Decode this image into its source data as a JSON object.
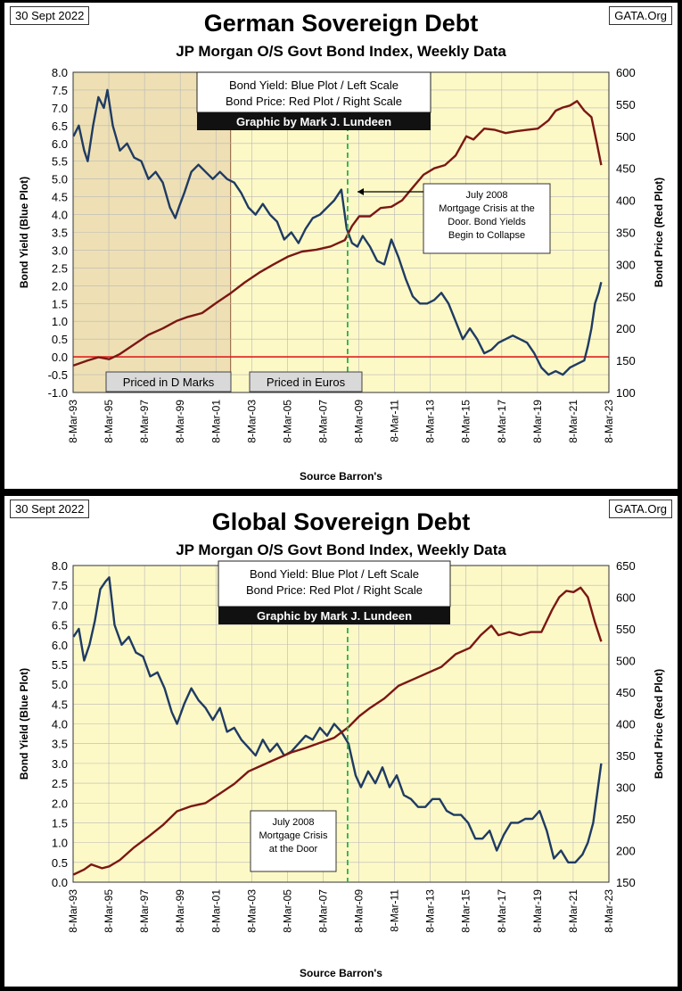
{
  "chart_data": [
    {
      "type": "line",
      "title": "German Sovereign Debt",
      "subtitle": "JP Morgan O/S Govt Bond Index, Weekly Data",
      "date_label": "30 Sept 2022",
      "source_tag": "GATA.Org",
      "xlabel": "Source Barron's",
      "ylabel_left": "Bond Yield (Blue Plot)",
      "ylabel_right": "Bond Price (Red Plot)",
      "ylim_left": [
        -1.0,
        8.0
      ],
      "ylim_right": [
        100,
        600
      ],
      "yticks_left": [
        "8.0",
        "7.5",
        "7.0",
        "6.5",
        "6.0",
        "5.5",
        "5.0",
        "4.5",
        "4.0",
        "3.5",
        "3.0",
        "2.5",
        "2.0",
        "1.5",
        "1.0",
        "0.5",
        "0.0",
        "-0.5",
        "-1.0"
      ],
      "yticks_right": [
        "600",
        "550",
        "500",
        "450",
        "400",
        "350",
        "300",
        "250",
        "200",
        "150",
        "100"
      ],
      "xticks": [
        "8-Mar-93",
        "8-Mar-95",
        "8-Mar-97",
        "8-Mar-99",
        "8-Mar-01",
        "8-Mar-03",
        "8-Mar-05",
        "8-Mar-07",
        "8-Mar-09",
        "8-Mar-11",
        "8-Mar-13",
        "8-Mar-15",
        "8-Mar-17",
        "8-Mar-19",
        "8-Mar-21",
        "8-Mar-23"
      ],
      "legend": [
        "Bond Yield: Blue Plot / Left Scale",
        "Bond Price: Red Plot / Right Scale"
      ],
      "credit": "Graphic by Mark J. Lundeen",
      "annotation": "July 2008 Mortgage Crisis at the Door. Bond Yields Begin to Collapse",
      "annotation_x": 2008.55,
      "zero_line": 0.0,
      "shaded_until": 2002.0,
      "region_labels": [
        "Priced in D Marks",
        "Priced in Euros"
      ],
      "series": [
        {
          "name": "Bond Yield",
          "axis": "left",
          "color": "#1f3b63",
          "x": [
            1993.2,
            1993.5,
            1993.8,
            1994.0,
            1994.3,
            1994.6,
            1994.9,
            1995.1,
            1995.4,
            1995.8,
            1996.2,
            1996.6,
            1997.0,
            1997.4,
            1997.8,
            1998.2,
            1998.6,
            1998.9,
            1999.1,
            1999.4,
            1999.8,
            2000.2,
            2000.6,
            2001.0,
            2001.4,
            2001.8,
            2002.2,
            2002.6,
            2003.0,
            2003.4,
            2003.8,
            2004.2,
            2004.6,
            2005.0,
            2005.4,
            2005.8,
            2006.2,
            2006.6,
            2007.0,
            2007.4,
            2007.8,
            2008.2,
            2008.5,
            2008.8,
            2009.1,
            2009.4,
            2009.8,
            2010.2,
            2010.6,
            2011.0,
            2011.4,
            2011.8,
            2012.2,
            2012.6,
            2013.0,
            2013.4,
            2013.8,
            2014.2,
            2014.6,
            2015.0,
            2015.4,
            2015.8,
            2016.2,
            2016.6,
            2017.0,
            2017.4,
            2017.8,
            2018.2,
            2018.6,
            2019.0,
            2019.4,
            2019.8,
            2020.2,
            2020.6,
            2021.0,
            2021.4,
            2021.8,
            2022.0,
            2022.2,
            2022.4,
            2022.6,
            2022.75
          ],
          "y": [
            6.2,
            6.5,
            5.8,
            5.5,
            6.5,
            7.3,
            7.0,
            7.5,
            6.5,
            5.8,
            6.0,
            5.6,
            5.5,
            5.0,
            5.2,
            4.9,
            4.2,
            3.9,
            4.2,
            4.6,
            5.2,
            5.4,
            5.2,
            5.0,
            5.2,
            5.0,
            4.9,
            4.6,
            4.2,
            4.0,
            4.3,
            4.0,
            3.8,
            3.3,
            3.5,
            3.2,
            3.6,
            3.9,
            4.0,
            4.2,
            4.4,
            4.7,
            3.6,
            3.2,
            3.1,
            3.4,
            3.1,
            2.7,
            2.6,
            3.3,
            2.8,
            2.2,
            1.7,
            1.5,
            1.5,
            1.6,
            1.8,
            1.5,
            1.0,
            0.5,
            0.8,
            0.5,
            0.1,
            0.2,
            0.4,
            0.5,
            0.6,
            0.5,
            0.4,
            0.1,
            -0.3,
            -0.5,
            -0.4,
            -0.5,
            -0.3,
            -0.2,
            -0.1,
            0.3,
            0.8,
            1.5,
            1.8,
            2.1
          ]
        },
        {
          "name": "Bond Price",
          "axis": "right",
          "color": "#7b1714",
          "x": [
            1993.2,
            1994.0,
            1994.6,
            1995.2,
            1995.8,
            1996.6,
            1997.4,
            1998.2,
            1999.0,
            1999.6,
            2000.4,
            2001.2,
            2002.0,
            2002.8,
            2003.6,
            2004.4,
            2005.2,
            2006.0,
            2006.8,
            2007.6,
            2008.4,
            2008.8,
            2009.2,
            2009.8,
            2010.4,
            2011.0,
            2011.6,
            2012.2,
            2012.8,
            2013.4,
            2014.0,
            2014.6,
            2015.2,
            2015.6,
            2016.2,
            2016.8,
            2017.4,
            2018.0,
            2018.6,
            2019.2,
            2019.8,
            2020.2,
            2020.6,
            2021.0,
            2021.4,
            2021.8,
            2022.2,
            2022.5,
            2022.75
          ],
          "y": [
            142,
            150,
            155,
            152,
            160,
            175,
            190,
            200,
            212,
            218,
            224,
            240,
            255,
            272,
            287,
            300,
            312,
            320,
            323,
            328,
            338,
            360,
            375,
            375,
            388,
            390,
            400,
            420,
            440,
            450,
            455,
            470,
            500,
            495,
            512,
            510,
            505,
            508,
            510,
            512,
            525,
            540,
            545,
            548,
            555,
            540,
            530,
            490,
            455
          ]
        }
      ]
    },
    {
      "type": "line",
      "title": "Global Sovereign Debt",
      "subtitle": "JP Morgan O/S Govt Bond Index, Weekly Data",
      "date_label": "30 Sept 2022",
      "source_tag": "GATA.Org",
      "xlabel": "Source Barron's",
      "ylabel_left": "Bond Yield (Blue Plot)",
      "ylabel_right": "Bond Price (Red Plot)",
      "ylim_left": [
        0.0,
        8.0
      ],
      "ylim_right": [
        150,
        650
      ],
      "yticks_left": [
        "8.0",
        "7.5",
        "7.0",
        "6.5",
        "6.0",
        "5.5",
        "5.0",
        "4.5",
        "4.0",
        "3.5",
        "3.0",
        "2.5",
        "2.0",
        "1.5",
        "1.0",
        "0.5",
        "0.0"
      ],
      "yticks_right": [
        "650",
        "600",
        "550",
        "500",
        "450",
        "400",
        "350",
        "300",
        "250",
        "200",
        "150"
      ],
      "xticks": [
        "8-Mar-93",
        "8-Mar-95",
        "8-Mar-97",
        "8-Mar-99",
        "8-Mar-01",
        "8-Mar-03",
        "8-Mar-05",
        "8-Mar-07",
        "8-Mar-09",
        "8-Mar-11",
        "8-Mar-13",
        "8-Mar-15",
        "8-Mar-17",
        "8-Mar-19",
        "8-Mar-21",
        "8-Mar-23"
      ],
      "legend": [
        "Bond Yield: Blue Plot / Left Scale",
        "Bond Price: Red Plot / Right Scale"
      ],
      "credit": "Graphic by Mark J. Lundeen",
      "annotation": "July 2008 Mortgage Crisis at the Door",
      "annotation_x": 2008.55,
      "series": [
        {
          "name": "Bond Yield",
          "axis": "left",
          "color": "#1f3b63",
          "x": [
            1993.2,
            1993.5,
            1993.8,
            1994.1,
            1994.4,
            1994.7,
            1995.0,
            1995.2,
            1995.5,
            1995.9,
            1996.3,
            1996.7,
            1997.1,
            1997.5,
            1997.9,
            1998.3,
            1998.7,
            1999.0,
            1999.4,
            1999.8,
            2000.2,
            2000.6,
            2001.0,
            2001.4,
            2001.8,
            2002.2,
            2002.6,
            2003.0,
            2003.4,
            2003.8,
            2004.2,
            2004.6,
            2005.0,
            2005.4,
            2005.8,
            2006.2,
            2006.6,
            2007.0,
            2007.4,
            2007.8,
            2008.2,
            2008.6,
            2009.0,
            2009.3,
            2009.7,
            2010.1,
            2010.5,
            2010.9,
            2011.3,
            2011.7,
            2012.1,
            2012.5,
            2012.9,
            2013.3,
            2013.7,
            2014.1,
            2014.5,
            2014.9,
            2015.3,
            2015.7,
            2016.1,
            2016.5,
            2016.9,
            2017.3,
            2017.7,
            2018.1,
            2018.5,
            2018.9,
            2019.3,
            2019.7,
            2020.1,
            2020.5,
            2020.9,
            2021.3,
            2021.7,
            2022.0,
            2022.3,
            2022.6,
            2022.75
          ],
          "y": [
            6.2,
            6.4,
            5.6,
            6.0,
            6.6,
            7.4,
            7.6,
            7.7,
            6.5,
            6.0,
            6.2,
            5.8,
            5.7,
            5.2,
            5.3,
            4.9,
            4.3,
            4.0,
            4.5,
            4.9,
            4.6,
            4.4,
            4.1,
            4.4,
            3.8,
            3.9,
            3.6,
            3.4,
            3.2,
            3.6,
            3.3,
            3.5,
            3.2,
            3.3,
            3.5,
            3.7,
            3.6,
            3.9,
            3.7,
            4.0,
            3.8,
            3.5,
            2.7,
            2.4,
            2.8,
            2.5,
            2.9,
            2.4,
            2.7,
            2.2,
            2.1,
            1.9,
            1.9,
            2.1,
            2.1,
            1.8,
            1.7,
            1.7,
            1.5,
            1.1,
            1.1,
            1.3,
            0.8,
            1.2,
            1.5,
            1.5,
            1.6,
            1.6,
            1.8,
            1.3,
            0.6,
            0.8,
            0.5,
            0.5,
            0.7,
            1.0,
            1.5,
            2.5,
            3.0
          ]
        },
        {
          "name": "Bond Price",
          "axis": "right",
          "color": "#7b1714",
          "x": [
            1993.2,
            1993.8,
            1994.2,
            1994.8,
            1995.2,
            1995.8,
            1996.6,
            1997.4,
            1998.2,
            1999.0,
            1999.8,
            2000.6,
            2001.4,
            2002.2,
            2003.0,
            2003.8,
            2004.6,
            2005.4,
            2006.2,
            2007.0,
            2007.8,
            2008.6,
            2009.2,
            2009.8,
            2010.6,
            2011.4,
            2012.2,
            2013.0,
            2013.8,
            2014.6,
            2015.4,
            2016.0,
            2016.6,
            2017.0,
            2017.6,
            2018.2,
            2018.8,
            2019.4,
            2020.0,
            2020.4,
            2020.8,
            2021.2,
            2021.6,
            2022.0,
            2022.4,
            2022.75
          ],
          "y": [
            162,
            170,
            178,
            172,
            175,
            185,
            205,
            222,
            240,
            262,
            270,
            275,
            290,
            305,
            325,
            335,
            345,
            355,
            362,
            370,
            378,
            395,
            412,
            425,
            440,
            460,
            470,
            480,
            490,
            510,
            520,
            540,
            555,
            540,
            545,
            540,
            545,
            545,
            580,
            600,
            610,
            608,
            615,
            600,
            560,
            530
          ]
        }
      ]
    }
  ]
}
